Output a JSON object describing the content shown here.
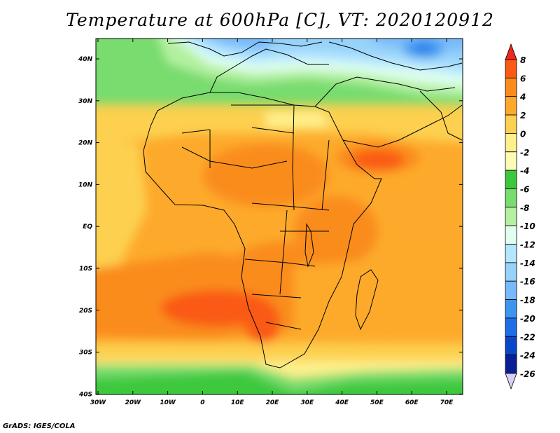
{
  "title": "Temperature at 600hPa [C], VT: 2020120912",
  "credit": "GrADS: IGES/COLA",
  "lat_labels": [
    "40N",
    "30N",
    "20N",
    "10N",
    "EQ",
    "10S",
    "20S",
    "30S",
    "40S"
  ],
  "lon_labels": [
    "30W",
    "20W",
    "10W",
    "0",
    "10E",
    "20E",
    "30E",
    "40E",
    "50E",
    "60E",
    "70E"
  ],
  "colorbar": {
    "labels": [
      "8",
      "6",
      "4",
      "2",
      "0",
      "-2",
      "-4",
      "-6",
      "-8",
      "-10",
      "-12",
      "-14",
      "-16",
      "-18",
      "-20",
      "-22",
      "-24",
      "-26"
    ],
    "colors": [
      "#f0281a",
      "#fa5a14",
      "#fa8c1e",
      "#fdaa2c",
      "#fdd050",
      "#fef08c",
      "#fefbb4",
      "#3cc83c",
      "#78dc6e",
      "#b4f0a0",
      "#e0fff0",
      "#b4e6ff",
      "#96d2fa",
      "#78b9fa",
      "#3c96f0",
      "#1e6ee6",
      "#0a46c8",
      "#0a1e96",
      "#000a64"
    ]
  },
  "map_data": {
    "region": {
      "lon": [
        -30,
        75
      ],
      "lat": [
        -40,
        45
      ]
    },
    "colors": {
      "land_border": "#000000",
      "frame": "#000000"
    }
  }
}
